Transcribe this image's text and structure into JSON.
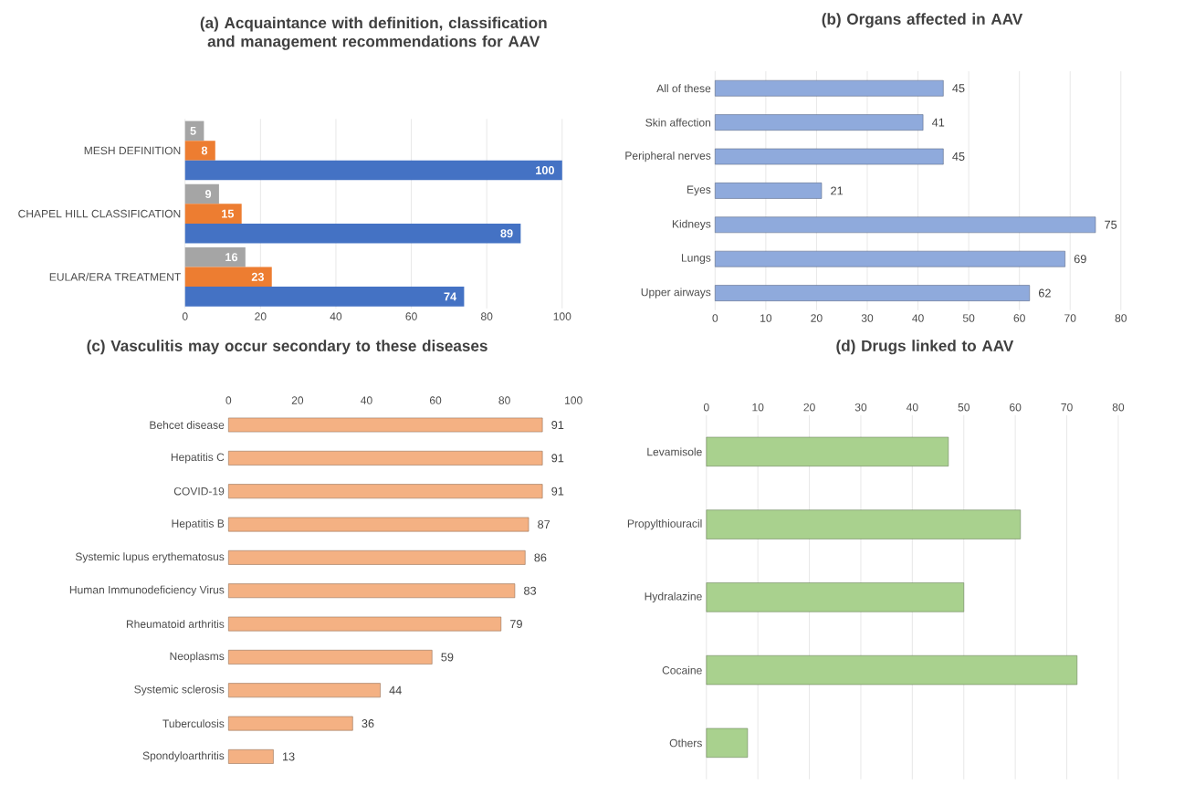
{
  "chart_data": [
    {
      "type": "bar",
      "orientation": "horizontal",
      "title": "(a) Acquaintance with definition, classification and management recommendations for AAV",
      "categories": [
        "MESH DEFINITION",
        "CHAPEL HILL CLASSIFICATION",
        "EULAR/ERA TREATMENT"
      ],
      "series": [
        {
          "color": "#a5a5a5",
          "values": [
            5,
            9,
            16
          ]
        },
        {
          "color": "#ed7d31",
          "values": [
            8,
            15,
            23
          ]
        },
        {
          "color": "#4472c4",
          "values": [
            100,
            89,
            74
          ]
        }
      ],
      "xlim": [
        0,
        100
      ],
      "xticks": [
        0,
        20,
        40,
        60,
        80,
        100
      ],
      "grid": "x",
      "data_labels": true
    },
    {
      "type": "bar",
      "orientation": "horizontal",
      "title": "(b) Organs affected in AAV",
      "categories": [
        "All of these",
        "Skin affection",
        "Peripheral nerves",
        "Eyes",
        "Kidneys",
        "Lungs",
        "Upper airways"
      ],
      "values": [
        45,
        41,
        45,
        21,
        75,
        69,
        62
      ],
      "color": "#8faadc",
      "xlim": [
        0,
        80
      ],
      "xticks": [
        0,
        10,
        20,
        30,
        40,
        50,
        60,
        70,
        80
      ],
      "grid": "x",
      "data_labels": true
    },
    {
      "type": "bar",
      "orientation": "horizontal",
      "title": "(c) Vasculitis may occur secondary to these diseases",
      "categories": [
        "Behcet disease",
        "Hepatitis C",
        "COVID-19",
        "Hepatitis B",
        "Systemic lupus erythematosus",
        "Human Immunodeficiency Virus",
        "Rheumatoid arthritis",
        "Neoplasms",
        "Systemic sclerosis",
        "Tuberculosis",
        "Spondyloarthritis"
      ],
      "values": [
        91,
        91,
        91,
        87,
        86,
        83,
        79,
        59,
        44,
        36,
        13
      ],
      "color": "#f4b183",
      "xlim": [
        0,
        100
      ],
      "xticks": [
        0,
        20,
        40,
        60,
        80,
        100
      ],
      "data_labels": true
    },
    {
      "type": "bar",
      "orientation": "horizontal",
      "title": "(d) Drugs linked to AAV",
      "categories": [
        "Levamisole",
        "Propylthiouracil",
        "Hydralazine",
        "Cocaine",
        "Others"
      ],
      "values": [
        47,
        61,
        50,
        72,
        8
      ],
      "color": "#a9d18e",
      "xlim": [
        0,
        80
      ],
      "xticks": [
        0,
        10,
        20,
        30,
        40,
        50,
        60,
        70,
        80
      ],
      "grid": "x"
    }
  ]
}
